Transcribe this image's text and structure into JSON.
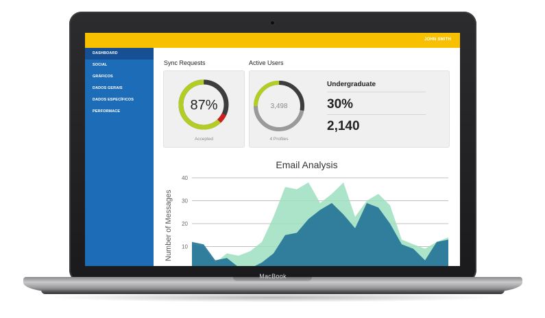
{
  "device": {
    "brand": "MacBook"
  },
  "header": {
    "user_name": "JOHN SMITH",
    "bar_color": "#f7c001"
  },
  "sidebar": {
    "items": [
      {
        "label": "DASHBOARD",
        "active": true
      },
      {
        "label": "SOCIAL",
        "active": false
      },
      {
        "label": "GRÁFICOS",
        "active": false
      },
      {
        "label": "DADOS GERAIS",
        "active": false
      },
      {
        "label": "DADOS ESPECÍFICOS",
        "active": false
      },
      {
        "label": "PERFORMACE",
        "active": false
      }
    ]
  },
  "sync": {
    "title": "Sync Requests",
    "value": "87%",
    "caption": "Accepted",
    "accepted_fraction": 0.87,
    "colors": {
      "accepted": "#b3cc26",
      "rest": "#3d3d3d",
      "rejected": "#cc1f1f"
    }
  },
  "active_users": {
    "title": "Active Users",
    "value": "3,498",
    "caption": "4 Profiles",
    "ring_fraction": 0.42,
    "segment_label": "Undergraduate",
    "percent": "30%",
    "count": "2,140"
  },
  "chart_data": {
    "type": "area",
    "title": "Email Analysis",
    "ylabel": "Number of Messages",
    "xlabel": "",
    "ylim": [
      0,
      40
    ],
    "yticks": [
      "10",
      "20",
      "30",
      "40"
    ],
    "grid": true,
    "series": [
      {
        "color": "#9ddfc0",
        "values": [
          11,
          10,
          3,
          7,
          6,
          8,
          12,
          23,
          36,
          35,
          38,
          29,
          33,
          38,
          23,
          30,
          33,
          28,
          13,
          11,
          9,
          12,
          14
        ]
      },
      {
        "color": "#1f6f95",
        "values": [
          12,
          11,
          4,
          5,
          1,
          0.5,
          3,
          7,
          15,
          16,
          22,
          26,
          29,
          24,
          18,
          29,
          27,
          20,
          11,
          9,
          4,
          12,
          13
        ]
      }
    ]
  }
}
